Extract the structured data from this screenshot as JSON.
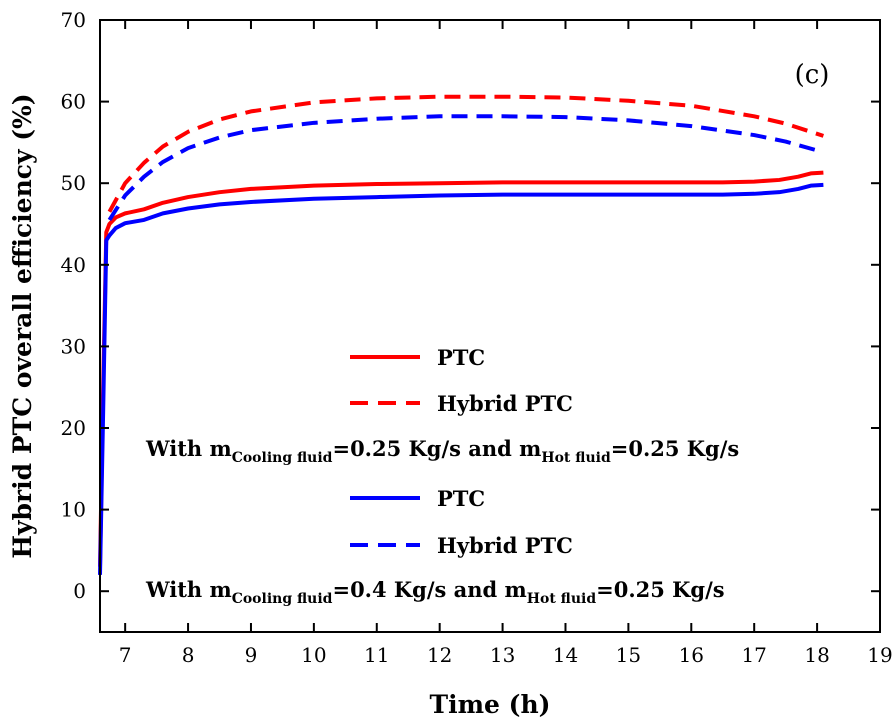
{
  "chart_data": {
    "type": "line",
    "title": "",
    "panel_label": "(c)",
    "xlabel": "Time (h)",
    "ylabel": "Hybrid PTC overall efficiency (%)",
    "xlim": [
      6.6,
      19
    ],
    "ylim": [
      -5,
      70
    ],
    "xticks": [
      7,
      8,
      9,
      10,
      11,
      12,
      13,
      14,
      15,
      16,
      17,
      18,
      19
    ],
    "yticks": [
      0,
      10,
      20,
      30,
      40,
      50,
      60,
      70
    ],
    "grid": false,
    "legend_position": "bottom-center",
    "series": [
      {
        "name": "PTC",
        "color": "#ff0000",
        "dash": "solid",
        "group": 0,
        "x": [
          6.6,
          6.65,
          6.7,
          6.75,
          6.85,
          7,
          7.3,
          7.6,
          8,
          8.5,
          9,
          10,
          11,
          12,
          13,
          14,
          15,
          16,
          16.5,
          17,
          17.4,
          17.7,
          17.9,
          18.1
        ],
        "y": [
          3,
          25,
          44,
          45,
          45.8,
          46.3,
          46.8,
          47.6,
          48.3,
          48.9,
          49.3,
          49.7,
          49.9,
          50,
          50.1,
          50.1,
          50.1,
          50.1,
          50.1,
          50.2,
          50.4,
          50.8,
          51.2,
          51.3
        ]
      },
      {
        "name": "Hybrid PTC",
        "color": "#ff0000",
        "dash": "dashed",
        "group": 0,
        "x": [
          6.75,
          7,
          7.3,
          7.6,
          8,
          8.5,
          9,
          10,
          11,
          12,
          13,
          14,
          15,
          16,
          17,
          17.5,
          18.1
        ],
        "y": [
          46.5,
          50,
          52.5,
          54.5,
          56.3,
          57.8,
          58.8,
          59.9,
          60.4,
          60.6,
          60.6,
          60.5,
          60.1,
          59.5,
          58.2,
          57.3,
          55.8
        ]
      },
      {
        "name": "PTC",
        "color": "#0000ff",
        "dash": "solid",
        "group": 1,
        "x": [
          6.6,
          6.65,
          6.7,
          6.75,
          6.85,
          7,
          7.3,
          7.6,
          8,
          8.5,
          9,
          10,
          11,
          12,
          13,
          14,
          15,
          16,
          16.5,
          17,
          17.4,
          17.7,
          17.9,
          18.1
        ],
        "y": [
          2,
          22,
          43,
          43.6,
          44.5,
          45.1,
          45.5,
          46.3,
          46.9,
          47.4,
          47.7,
          48.1,
          48.3,
          48.5,
          48.6,
          48.6,
          48.6,
          48.6,
          48.6,
          48.7,
          48.9,
          49.3,
          49.7,
          49.8
        ]
      },
      {
        "name": "Hybrid PTC",
        "color": "#0000ff",
        "dash": "dashed",
        "group": 1,
        "x": [
          6.75,
          7,
          7.3,
          7.6,
          8,
          8.5,
          9,
          10,
          11,
          12,
          13,
          14,
          15,
          16,
          17,
          17.5,
          18.1
        ],
        "y": [
          45.5,
          48.5,
          50.8,
          52.6,
          54.3,
          55.6,
          56.5,
          57.4,
          57.9,
          58.2,
          58.2,
          58.1,
          57.7,
          57,
          55.9,
          55.1,
          53.8
        ]
      }
    ],
    "legend": {
      "items": [
        {
          "label": "PTC",
          "color": "#ff0000",
          "dash": "solid"
        },
        {
          "label": "Hybrid PTC",
          "color": "#ff0000",
          "dash": "dashed"
        },
        {
          "label": "PTC",
          "color": "#0000ff",
          "dash": "solid"
        },
        {
          "label": "Hybrid PTC",
          "color": "#0000ff",
          "dash": "dashed"
        }
      ],
      "notes": [
        {
          "prefix": "With m",
          "sub1": "Cooling fluid",
          "mid": "=0.25 Kg/s and m",
          "sub2": "Hot fluid",
          "suffix": "=0.25 Kg/s"
        },
        {
          "prefix": "With m",
          "sub1": "Cooling fluid",
          "mid": "=0.4 Kg/s and m",
          "sub2": "Hot fluid",
          "suffix": "=0.25 Kg/s"
        }
      ]
    }
  }
}
